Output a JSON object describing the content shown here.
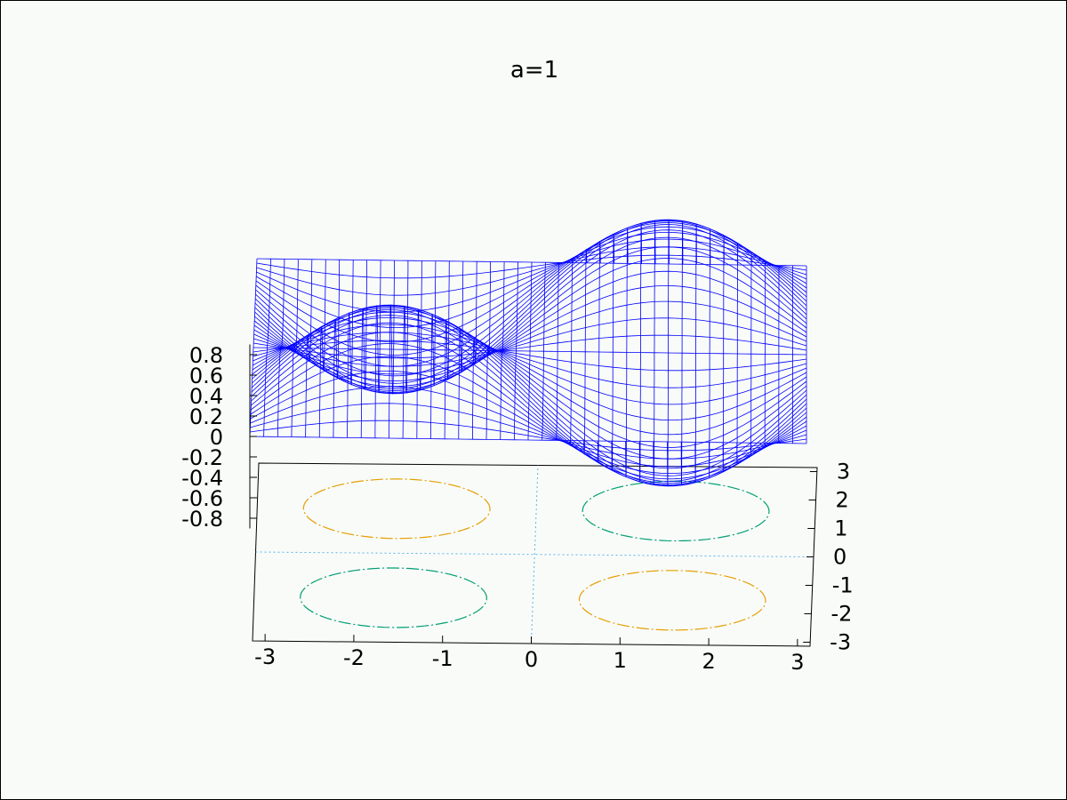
{
  "chart_data": {
    "type": "surface",
    "title": "a=1",
    "function": "z = sin(a*x) * sin(y)",
    "x_range": [
      -3.14159,
      3.14159
    ],
    "y_range": [
      -3.14159,
      3.14159
    ],
    "z_range": [
      -1,
      1
    ],
    "x_ticks": [
      "-3",
      "-2",
      "-1",
      "0",
      "1",
      "2",
      "3"
    ],
    "y_ticks": [
      "3",
      "2",
      "1",
      "0",
      "-1",
      "-2",
      "-3"
    ],
    "z_ticks": [
      "0.8",
      "0.6",
      "0.4",
      "0.2",
      "0",
      "-0.2",
      "-0.4",
      "-0.6",
      "-0.8"
    ],
    "contour_levels": [
      0.5,
      -0.5
    ],
    "colors": {
      "mesh": "#0000ff",
      "contour_positive": "#009e73",
      "contour_negative": "#e69f00",
      "zero_contour": "#56b4e9",
      "frame": "#000000",
      "background": "#f9fbf9"
    }
  }
}
